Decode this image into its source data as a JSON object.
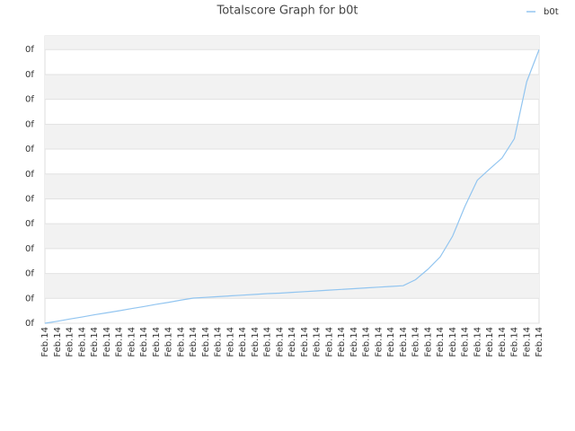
{
  "chart_data": {
    "type": "line",
    "title": "Totalscore Graph for b0t",
    "categories": [
      "Feb.14",
      "Feb.14",
      "Feb.14",
      "Feb.14",
      "Feb.14",
      "Feb.14",
      "Feb.14",
      "Feb.14",
      "Feb.14",
      "Feb.14",
      "Feb.14",
      "Feb.14",
      "Feb.14",
      "Feb.14",
      "Feb.14",
      "Feb.14",
      "Feb.14",
      "Feb.14",
      "Feb.14",
      "Feb.14",
      "Feb.14",
      "Feb.14",
      "Feb.14",
      "Feb.14",
      "Feb.14",
      "Feb.14",
      "Feb.14",
      "Feb.14",
      "Feb.14",
      "Feb.14",
      "Feb.14",
      "Feb.14",
      "Feb.14",
      "Feb.14",
      "Feb.14",
      "Feb.14",
      "Feb.14",
      "Feb.14",
      "Feb.14",
      "Feb.14",
      "Feb.14"
    ],
    "series": [
      {
        "name": "b0t",
        "color": "#92c5f0",
        "values": [
          0,
          0.08,
          0.17,
          0.25,
          0.34,
          0.42,
          0.5,
          0.59,
          0.67,
          0.76,
          0.84,
          0.93,
          1.01,
          1.04,
          1.07,
          1.1,
          1.13,
          1.16,
          1.19,
          1.21,
          1.24,
          1.27,
          1.3,
          1.33,
          1.36,
          1.39,
          1.42,
          1.45,
          1.48,
          1.51,
          1.75,
          2.17,
          2.67,
          3.5,
          4.7,
          5.75,
          6.2,
          6.64,
          7.42,
          9.71,
          11
        ]
      }
    ],
    "ylim": [
      0,
      11.55
    ],
    "yticks": [
      {
        "value": 0,
        "label": "0f"
      },
      {
        "value": 1,
        "label": "0f"
      },
      {
        "value": 2,
        "label": "0f"
      },
      {
        "value": 3,
        "label": "0f"
      },
      {
        "value": 4,
        "label": "0f"
      },
      {
        "value": 5,
        "label": "0f"
      },
      {
        "value": 6,
        "label": "0f"
      },
      {
        "value": 7,
        "label": "0f"
      },
      {
        "value": 8,
        "label": "0f"
      },
      {
        "value": 9,
        "label": "0f"
      },
      {
        "value": 10,
        "label": "0f"
      },
      {
        "value": 11,
        "label": "0f"
      }
    ],
    "grid": true,
    "legend": "top-right"
  }
}
